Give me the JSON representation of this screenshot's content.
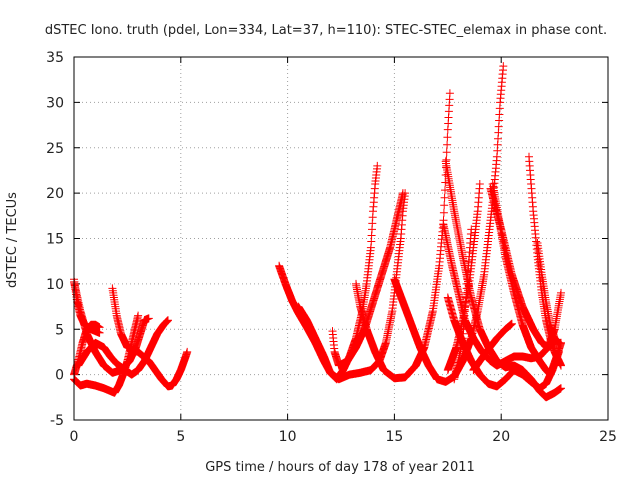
{
  "chart_data": {
    "type": "scatter",
    "title": "dSTEC Iono. truth (pdel, Lon=334, Lat=37, h=110): STEC-STEC_elemax in phase cont.",
    "xlabel": "GPS time / hours of day 178 of year 2011",
    "ylabel": "dSTEC  / TECUs",
    "xlim": [
      0,
      25
    ],
    "ylim": [
      -5,
      35
    ],
    "xticks": [
      0,
      5,
      10,
      15,
      20,
      25
    ],
    "yticks": [
      -5,
      0,
      5,
      10,
      15,
      20,
      25,
      30,
      35
    ],
    "grid": true,
    "marker": "plus",
    "series": [
      {
        "points": [
          [
            0.0,
            10.5
          ],
          [
            0.15,
            8
          ],
          [
            0.3,
            6.5
          ],
          [
            0.5,
            5.5
          ],
          [
            0.8,
            5
          ],
          [
            1.0,
            4.8
          ],
          [
            1.2,
            4.6
          ]
        ]
      },
      {
        "points": [
          [
            0.0,
            0.0
          ],
          [
            0.2,
            1.5
          ],
          [
            0.4,
            3.5
          ],
          [
            0.6,
            5
          ],
          [
            0.8,
            5.5
          ],
          [
            1.0,
            5.5
          ],
          [
            1.2,
            5.2
          ]
        ]
      },
      {
        "points": [
          [
            0.0,
            10.2
          ],
          [
            0.3,
            7
          ],
          [
            0.6,
            4.5
          ],
          [
            1.0,
            2.5
          ],
          [
            1.4,
            1
          ],
          [
            1.8,
            0.2
          ],
          [
            2.2,
            0.5
          ],
          [
            2.6,
            1.5
          ],
          [
            2.9,
            3
          ],
          [
            3.1,
            4.5
          ],
          [
            3.3,
            6
          ],
          [
            3.5,
            6.2
          ]
        ]
      },
      {
        "points": [
          [
            0.0,
            -0.5
          ],
          [
            0.3,
            -1.2
          ],
          [
            0.6,
            -1.0
          ],
          [
            1.0,
            -1.2
          ],
          [
            1.4,
            -1.5
          ],
          [
            1.7,
            -1.8
          ],
          [
            1.9,
            -2.0
          ],
          [
            2.1,
            -1.2
          ],
          [
            2.3,
            0
          ],
          [
            2.5,
            1.5
          ],
          [
            2.7,
            3.5
          ],
          [
            2.9,
            5.5
          ],
          [
            3.0,
            6.5
          ]
        ]
      },
      {
        "points": [
          [
            0.2,
            1.0
          ],
          [
            0.6,
            2.5
          ],
          [
            1.0,
            3.5
          ],
          [
            1.4,
            3.0
          ],
          [
            1.7,
            2.0
          ],
          [
            2.0,
            1.2
          ],
          [
            2.4,
            0.5
          ],
          [
            2.7,
            0
          ],
          [
            3.0,
            0.5
          ],
          [
            3.3,
            1.5
          ],
          [
            3.6,
            3
          ],
          [
            3.9,
            4.5
          ],
          [
            4.2,
            5.5
          ],
          [
            4.4,
            6.0
          ]
        ]
      },
      {
        "points": [
          [
            1.8,
            9.5
          ],
          [
            1.9,
            8
          ],
          [
            2.0,
            6.5
          ],
          [
            2.2,
            4.5
          ],
          [
            2.5,
            3
          ],
          [
            3.0,
            2.5
          ],
          [
            3.5,
            1.5
          ],
          [
            3.8,
            0.5
          ],
          [
            4.1,
            -0.5
          ],
          [
            4.4,
            -1.3
          ],
          [
            4.6,
            -1.2
          ],
          [
            4.8,
            -0.5
          ],
          [
            5.0,
            0.5
          ],
          [
            5.2,
            1.8
          ],
          [
            5.3,
            2.5
          ]
        ]
      },
      {
        "points": [
          [
            9.6,
            12
          ],
          [
            9.9,
            10
          ],
          [
            10.2,
            8.2
          ],
          [
            10.5,
            6.8
          ],
          [
            10.9,
            5.2
          ],
          [
            11.3,
            3.5
          ],
          [
            11.7,
            1.5
          ],
          [
            12.0,
            0.2
          ],
          [
            12.3,
            -0.5
          ],
          [
            12.6,
            0.5
          ],
          [
            12.9,
            2
          ],
          [
            13.2,
            4
          ],
          [
            13.5,
            7
          ],
          [
            13.7,
            10
          ],
          [
            13.9,
            14
          ],
          [
            14.0,
            18
          ],
          [
            14.1,
            21
          ],
          [
            14.2,
            23
          ]
        ]
      },
      {
        "points": [
          [
            10.5,
            7.5
          ],
          [
            10.9,
            6
          ],
          [
            11.3,
            4
          ],
          [
            11.7,
            2
          ],
          [
            12.0,
            0.2
          ],
          [
            12.4,
            -0.5
          ],
          [
            12.9,
            0
          ],
          [
            13.4,
            0.2
          ],
          [
            13.9,
            0.5
          ],
          [
            14.3,
            1.5
          ],
          [
            14.6,
            3.5
          ],
          [
            14.9,
            7
          ],
          [
            15.1,
            11
          ],
          [
            15.3,
            15
          ],
          [
            15.4,
            18
          ],
          [
            15.5,
            20
          ]
        ]
      },
      {
        "points": [
          [
            12.1,
            4.8
          ],
          [
            12.2,
            2.5
          ],
          [
            12.4,
            1
          ],
          [
            12.8,
            1.5
          ],
          [
            13.2,
            3
          ],
          [
            13.6,
            5
          ],
          [
            14.0,
            8
          ],
          [
            14.4,
            11
          ],
          [
            14.8,
            14
          ],
          [
            15.1,
            17
          ],
          [
            15.3,
            19
          ],
          [
            15.4,
            20
          ]
        ]
      },
      {
        "points": [
          [
            13.2,
            10
          ],
          [
            13.4,
            7.5
          ],
          [
            13.7,
            5
          ],
          [
            14.1,
            2.5
          ],
          [
            14.5,
            0.5
          ],
          [
            15.0,
            -0.4
          ],
          [
            15.5,
            -0.3
          ],
          [
            16.0,
            1
          ],
          [
            16.4,
            3
          ],
          [
            16.8,
            7
          ],
          [
            17.1,
            12
          ],
          [
            17.3,
            17
          ],
          [
            17.4,
            22
          ],
          [
            17.5,
            27
          ],
          [
            17.6,
            31
          ]
        ]
      },
      {
        "points": [
          [
            15.0,
            10.5
          ],
          [
            15.4,
            8
          ],
          [
            15.8,
            5.5
          ],
          [
            16.2,
            3
          ],
          [
            16.6,
            1
          ],
          [
            17.0,
            -0.5
          ],
          [
            17.4,
            -0.8
          ],
          [
            17.8,
            -0.2
          ],
          [
            18.2,
            1.5
          ],
          [
            18.6,
            4
          ],
          [
            18.9,
            7
          ],
          [
            19.2,
            11
          ],
          [
            19.4,
            15
          ],
          [
            19.6,
            19
          ],
          [
            19.8,
            24
          ],
          [
            19.95,
            30
          ],
          [
            20.1,
            34
          ]
        ]
      },
      {
        "points": [
          [
            17.3,
            16.5
          ],
          [
            17.7,
            12
          ],
          [
            18.0,
            9
          ],
          [
            18.3,
            6
          ],
          [
            18.7,
            4
          ],
          [
            19.1,
            2.5
          ],
          [
            19.5,
            1.5
          ],
          [
            19.8,
            1
          ],
          [
            20.2,
            1.5
          ],
          [
            20.6,
            2
          ],
          [
            21.0,
            2
          ],
          [
            21.4,
            1.8
          ],
          [
            21.8,
            2
          ],
          [
            22.2,
            3
          ],
          [
            22.5,
            5
          ],
          [
            22.8,
            9
          ]
        ]
      },
      {
        "points": [
          [
            17.5,
            8.5
          ],
          [
            17.8,
            6
          ],
          [
            18.2,
            3.5
          ],
          [
            18.6,
            1.5
          ],
          [
            19.0,
            0
          ],
          [
            19.4,
            -1
          ],
          [
            19.8,
            -1.3
          ],
          [
            20.2,
            -0.5
          ],
          [
            20.6,
            0.5
          ],
          [
            21.0,
            0
          ],
          [
            21.4,
            -0.8
          ],
          [
            21.8,
            -1.5
          ],
          [
            22.1,
            -1
          ],
          [
            22.4,
            0.5
          ],
          [
            22.7,
            2.5
          ]
        ]
      },
      {
        "points": [
          [
            17.4,
            23.5
          ],
          [
            17.8,
            18
          ],
          [
            18.2,
            13
          ],
          [
            18.6,
            8.5
          ],
          [
            19.0,
            5
          ],
          [
            19.4,
            3
          ],
          [
            19.8,
            1.5
          ],
          [
            20.2,
            0.8
          ],
          [
            20.6,
            1
          ],
          [
            21.0,
            0.5
          ],
          [
            21.4,
            -0.5
          ],
          [
            21.8,
            -1.8
          ],
          [
            22.1,
            -2.5
          ],
          [
            22.5,
            -2
          ],
          [
            22.8,
            -1.5
          ]
        ]
      },
      {
        "points": [
          [
            17.8,
            -0.5
          ],
          [
            18.0,
            1.5
          ],
          [
            18.2,
            4
          ],
          [
            18.3,
            7
          ],
          [
            18.4,
            10
          ],
          [
            18.5,
            13
          ],
          [
            18.6,
            16
          ]
        ]
      },
      {
        "points": [
          [
            17.5,
            0.5
          ],
          [
            17.9,
            3
          ],
          [
            18.2,
            6
          ],
          [
            18.5,
            10
          ],
          [
            18.7,
            14
          ],
          [
            18.9,
            18
          ],
          [
            19.0,
            21
          ]
        ]
      },
      {
        "points": [
          [
            18.7,
            0.5
          ],
          [
            19.0,
            1.5
          ],
          [
            19.4,
            2.8
          ],
          [
            19.8,
            4
          ],
          [
            20.2,
            5
          ],
          [
            20.5,
            5.6
          ]
        ]
      },
      {
        "points": [
          [
            19.6,
            21
          ],
          [
            19.9,
            17
          ],
          [
            20.2,
            13
          ],
          [
            20.6,
            9
          ],
          [
            21.0,
            5.5
          ],
          [
            21.4,
            3
          ],
          [
            21.8,
            1.5
          ],
          [
            22.1,
            0.5
          ],
          [
            22.3,
            0
          ],
          [
            22.6,
            2
          ],
          [
            22.8,
            3.5
          ]
        ]
      },
      {
        "points": [
          [
            19.5,
            20.5
          ],
          [
            20.0,
            16
          ],
          [
            20.5,
            11
          ],
          [
            21.0,
            7.5
          ],
          [
            21.5,
            5
          ],
          [
            21.9,
            3.5
          ],
          [
            22.2,
            3
          ],
          [
            22.5,
            3.5
          ]
        ]
      },
      {
        "points": [
          [
            21.3,
            24
          ],
          [
            21.5,
            18
          ],
          [
            21.7,
            13
          ],
          [
            21.9,
            9
          ],
          [
            22.1,
            6
          ],
          [
            22.3,
            4
          ],
          [
            22.5,
            2.5
          ],
          [
            22.7,
            1.5
          ],
          [
            22.8,
            1
          ]
        ]
      },
      {
        "points": [
          [
            21.7,
            14.5
          ],
          [
            21.9,
            11
          ],
          [
            22.1,
            8
          ],
          [
            22.3,
            5.5
          ],
          [
            22.5,
            4
          ],
          [
            22.7,
            3.5
          ],
          [
            22.8,
            3.5
          ]
        ]
      }
    ],
    "colors": {
      "marker": "#ff0000",
      "grid": "#a0a0a0",
      "axes": "#000000",
      "text": "#222222"
    }
  }
}
